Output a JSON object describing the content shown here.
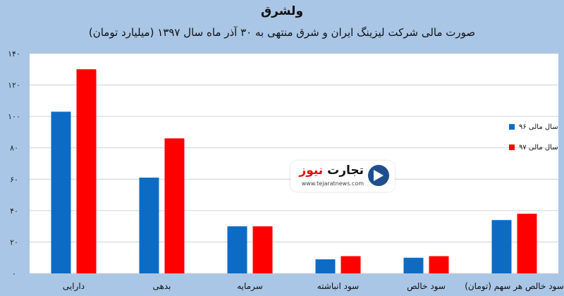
{
  "header": {
    "title": "ولشرق",
    "subtitle": "صورت مالی شرکت لیزینگ ایران و شرق منتهی به ۳۰ آذر ماه سال ۱۳۹۷ (میلیارد تومان)"
  },
  "logo": {
    "name_part1": "تجارت",
    "name_part2": "نیوز",
    "url": "www.tejaratnews.com"
  },
  "chart_data": {
    "type": "bar",
    "title": "ولشرق",
    "subtitle": "صورت مالی شرکت لیزینگ ایران و شرق منتهی به ۳۰ آذر ماه سال ۱۳۹۷ (میلیارد تومان)",
    "categories": [
      "دارایی",
      "بدهی",
      "سرمایه",
      "سود انباشته",
      "سود خالص",
      "سود خالص هر سهم (تومان)"
    ],
    "series": [
      {
        "name": "سال مالی ۹۶",
        "color": "#0e6bc4",
        "values": [
          103,
          61,
          30,
          9,
          10,
          34
        ]
      },
      {
        "name": "سال مالی ۹۷",
        "color": "#ff0000",
        "values": [
          130,
          86,
          30,
          11,
          11,
          38
        ]
      }
    ],
    "yticks": [
      "۰",
      "۲۰",
      "۴۰",
      "۶۰",
      "۸۰",
      "۱۰۰",
      "۱۲۰",
      "۱۴۰"
    ],
    "ylim": [
      0,
      140
    ],
    "grid": true,
    "legend_position": "right"
  }
}
